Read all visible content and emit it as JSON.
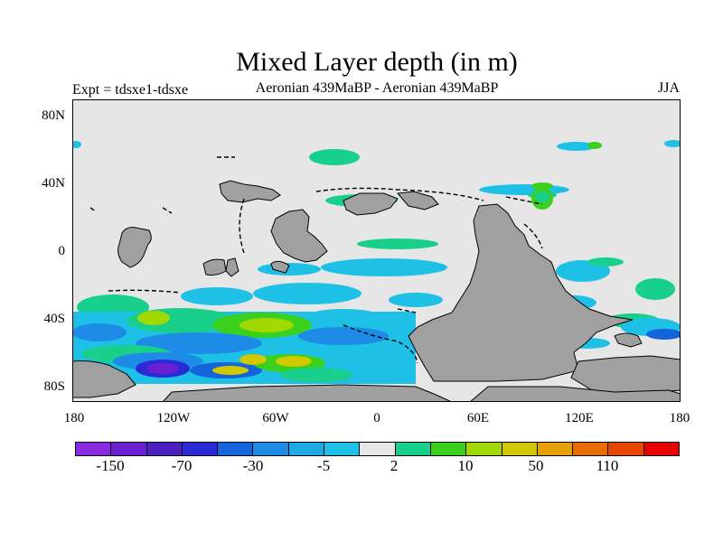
{
  "figure": {
    "title": "Mixed Layer depth (in m)",
    "left_label": "Expt = tdsxe1-tdsxe",
    "center_label": "Aeronian 439MaBP - Aeronian 439MaBP",
    "right_label": "JJA"
  },
  "axes": {
    "lat_ticks": [
      "80N",
      "40N",
      "0",
      "40S",
      "80S"
    ],
    "lon_ticks": [
      "180",
      "120W",
      "60W",
      "0",
      "60E",
      "120E",
      "180"
    ]
  },
  "colorbar": {
    "colors": [
      "#8a2be2",
      "#6a1fd0",
      "#4a20c0",
      "#2b2bd6",
      "#1464dc",
      "#1e8ce6",
      "#1eaae0",
      "#1ec0e6",
      "#e6e6e6",
      "#18d08c",
      "#3cd01e",
      "#a0d800",
      "#d2c800",
      "#e6a000",
      "#e66e00",
      "#e64600",
      "#e60000"
    ],
    "labels": [
      "-150",
      "-70",
      "-30",
      "-5",
      "2",
      "10",
      "50",
      "110"
    ]
  },
  "colors": {
    "ocean": "#e6e6e6",
    "land": "#a0a0a0",
    "cyan": "#1ec0e6",
    "mint": "#18d08c",
    "blue": "#1e8ce6",
    "green": "#3cd01e",
    "yellow": "#d2c800",
    "purple": "#6a1fd0"
  }
}
